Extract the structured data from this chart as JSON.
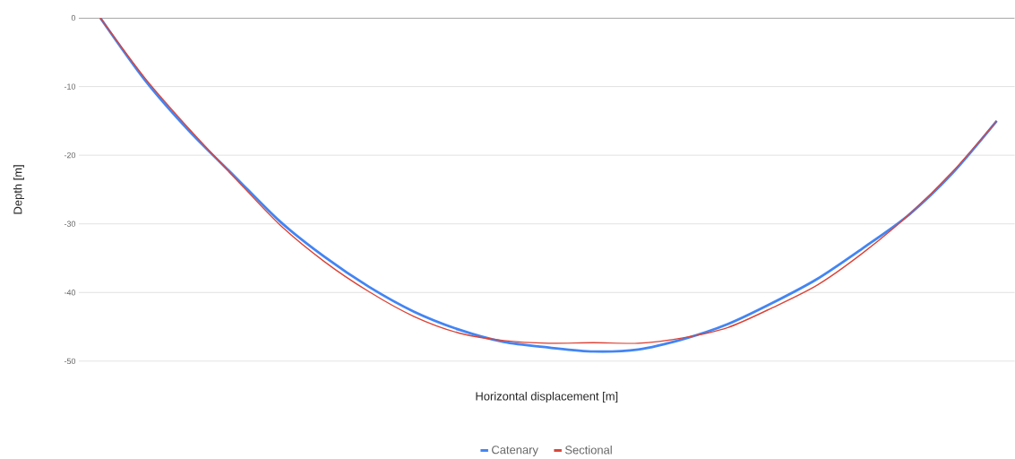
{
  "chart_data": {
    "type": "line",
    "xlabel": "Horizontal displacement [m]",
    "ylabel": "Depth [m]",
    "categories": [
      null,
      null,
      null,
      null,
      null,
      null,
      null,
      null,
      null,
      null,
      null,
      null,
      null,
      null,
      null,
      null,
      null,
      null,
      null,
      null,
      null
    ],
    "series": [
      {
        "name": "Catenary",
        "color": "#4285f4",
        "values": [
          0,
          -9.1,
          -16.6,
          -23.1,
          -29.6,
          -34.8,
          -39.2,
          -42.8,
          -45.4,
          -47.2,
          -48.0,
          -48.6,
          -48.3,
          -46.8,
          -44.6,
          -41.5,
          -38.0,
          -33.6,
          -28.9,
          -22.7,
          -15
        ]
      },
      {
        "name": "Sectional",
        "color": "#db4437",
        "values": [
          0,
          -8.8,
          -16.3,
          -23.3,
          -30.1,
          -35.5,
          -39.9,
          -43.5,
          -45.9,
          -47.0,
          -47.4,
          -47.3,
          -47.4,
          -46.6,
          -45.1,
          -42.2,
          -38.9,
          -34.3,
          -28.9,
          -22.5,
          -15
        ]
      }
    ],
    "ylim": [
      -50,
      0
    ],
    "yticks": [
      0,
      -10,
      -20,
      -30,
      -40,
      -50
    ],
    "grid": "y",
    "legend": "bottom",
    "marker": "none",
    "line_style": "solid"
  }
}
